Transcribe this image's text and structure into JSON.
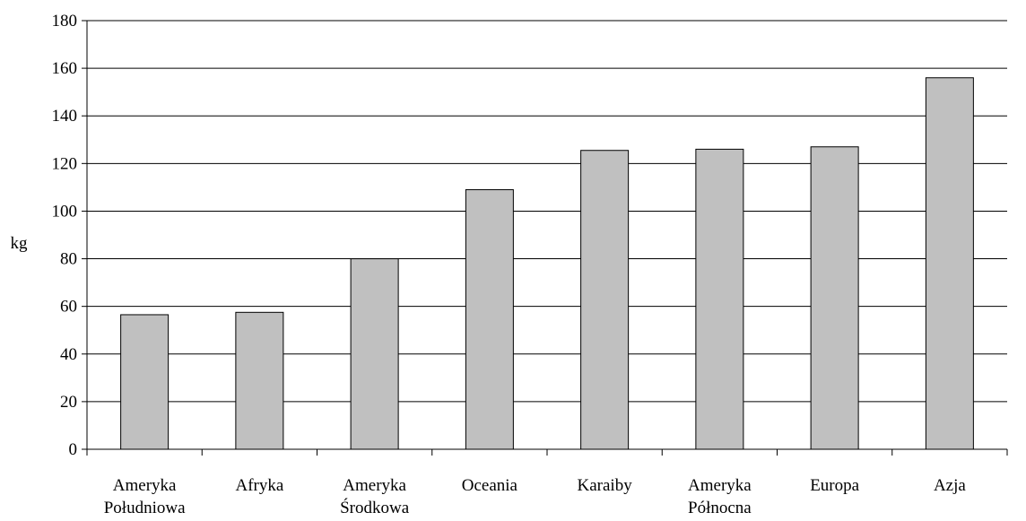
{
  "chart_data": {
    "type": "bar",
    "categories": [
      [
        "Ameryka",
        "Południowa"
      ],
      [
        "Afryka"
      ],
      [
        "Ameryka",
        "Środkowa"
      ],
      [
        "Oceania"
      ],
      [
        "Karaiby"
      ],
      [
        "Ameryka",
        "Północna"
      ],
      [
        "Europa"
      ],
      [
        "Azja"
      ]
    ],
    "values": [
      56.5,
      57.5,
      80,
      109,
      125.5,
      126,
      127,
      156
    ],
    "ylabel": "kg",
    "ylim": [
      0,
      180
    ],
    "yticks": [
      0,
      20,
      40,
      60,
      80,
      100,
      120,
      140,
      160,
      180
    ],
    "grid": true,
    "bar_color": "#c0c0c0",
    "bar_edge_color": "#000000"
  }
}
